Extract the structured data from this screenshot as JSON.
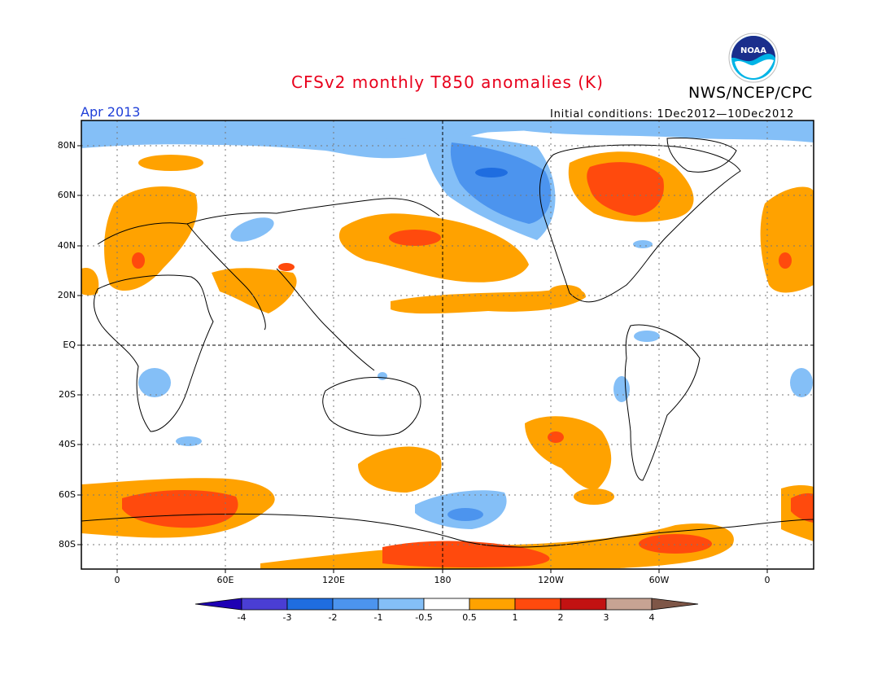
{
  "header": {
    "title": "CFSv2 monthly T850 anomalies (K)",
    "agency": "NWS/NCEP/CPC",
    "logo_text": "NOAA",
    "month": "Apr 2013",
    "initial_conditions": "Initial conditions: 1Dec2012—10Dec2012"
  },
  "axes": {
    "lat_labels": [
      "80N",
      "60N",
      "40N",
      "20N",
      "EQ",
      "20S",
      "40S",
      "60S",
      "80S"
    ],
    "lon_labels": [
      "0",
      "60E",
      "120E",
      "180",
      "120W",
      "60W",
      "0"
    ]
  },
  "colorbar": {
    "labels": [
      "-4",
      "-3",
      "-2",
      "-1",
      "-0.5",
      "0.5",
      "1",
      "2",
      "3",
      "4"
    ],
    "colors": [
      "#1e00b4",
      "#4a3ed4",
      "#1f6de0",
      "#4c94ee",
      "#84bff7",
      "#ffffff",
      "#ffa200",
      "#ff4a0d",
      "#c21212",
      "#c7a393",
      "#7e5647"
    ]
  },
  "palette": {
    "neg_1": "#84bff7",
    "neg_2": "#4c94ee",
    "neg_3": "#1f6de0",
    "pos_1": "#ffa200",
    "pos_2": "#ff4a0d"
  },
  "regions": [
    {
      "name": "arctic-cold-band",
      "level": "neg_1"
    },
    {
      "name": "alaska-cold",
      "level": "neg_2"
    },
    {
      "name": "canada-warm",
      "level": "pos_1"
    },
    {
      "name": "hudson-bay-warm-core",
      "level": "pos_2"
    },
    {
      "name": "europe-warm",
      "level": "pos_1"
    },
    {
      "name": "north-pacific-warm",
      "level": "pos_1"
    },
    {
      "name": "south-pacific-warm",
      "level": "pos_1"
    },
    {
      "name": "southern-ocean-warm",
      "level": "pos_1"
    },
    {
      "name": "antarctic-warm-core",
      "level": "pos_2"
    },
    {
      "name": "south-pacific-cold",
      "level": "neg_2"
    }
  ]
}
